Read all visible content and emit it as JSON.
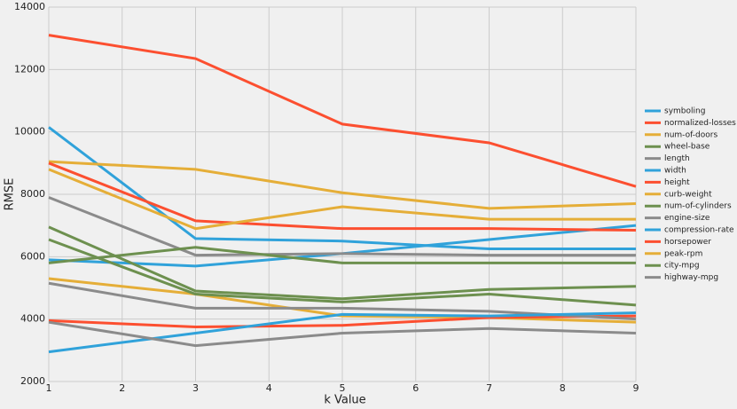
{
  "chart_data": {
    "type": "line",
    "x_label": "k Value",
    "y_label": "RMSE",
    "x": [
      1,
      3,
      5,
      7,
      9
    ],
    "xlim": [
      1,
      9
    ],
    "xticks": [
      1,
      2,
      3,
      4,
      5,
      6,
      7,
      8,
      9
    ],
    "ylim": [
      2000,
      14000
    ],
    "yticks": [
      2000,
      4000,
      6000,
      8000,
      10000,
      12000,
      14000
    ],
    "grid": true,
    "legend": "right",
    "series": [
      {
        "name": "symboling",
        "color": "#30a2da",
        "values": [
          5900,
          5700,
          6100,
          6550,
          7000
        ]
      },
      {
        "name": "normalized-losses",
        "color": "#fc4f30",
        "values": [
          13100,
          12350,
          10250,
          9650,
          8250
        ]
      },
      {
        "name": "num-of-doors",
        "color": "#e5ae38",
        "values": [
          5300,
          4800,
          4100,
          4050,
          3900
        ]
      },
      {
        "name": "wheel-base",
        "color": "#6d904f",
        "values": [
          6950,
          4900,
          4650,
          4950,
          5050
        ]
      },
      {
        "name": "length",
        "color": "#8b8b8b",
        "values": [
          7900,
          6050,
          6100,
          6050,
          6050
        ]
      },
      {
        "name": "width",
        "color": "#30a2da",
        "values": [
          10150,
          6580,
          6500,
          6250,
          6250
        ]
      },
      {
        "name": "height",
        "color": "#fc4f30",
        "values": [
          3950,
          3750,
          3800,
          4050,
          4100
        ]
      },
      {
        "name": "curb-weight",
        "color": "#e5ae38",
        "values": [
          9050,
          8800,
          8050,
          7550,
          7700
        ]
      },
      {
        "name": "num-of-cylinders",
        "color": "#6d904f",
        "values": [
          5800,
          6300,
          5800,
          5800,
          5800
        ]
      },
      {
        "name": "engine-size",
        "color": "#8b8b8b",
        "values": [
          5150,
          4350,
          4350,
          4250,
          4000
        ]
      },
      {
        "name": "compression-rate",
        "color": "#30a2da",
        "values": [
          2950,
          3550,
          4150,
          4100,
          4200
        ]
      },
      {
        "name": "horsepower",
        "color": "#fc4f30",
        "values": [
          9000,
          7150,
          6900,
          6900,
          6850
        ]
      },
      {
        "name": "peak-rpm",
        "color": "#e5ae38",
        "values": [
          8800,
          6900,
          7600,
          7200,
          7200
        ]
      },
      {
        "name": "city-mpg",
        "color": "#6d904f",
        "values": [
          6550,
          4800,
          4550,
          4800,
          4450
        ]
      },
      {
        "name": "highway-mpg",
        "color": "#8b8b8b",
        "values": [
          3900,
          3150,
          3550,
          3700,
          3550
        ]
      }
    ]
  }
}
